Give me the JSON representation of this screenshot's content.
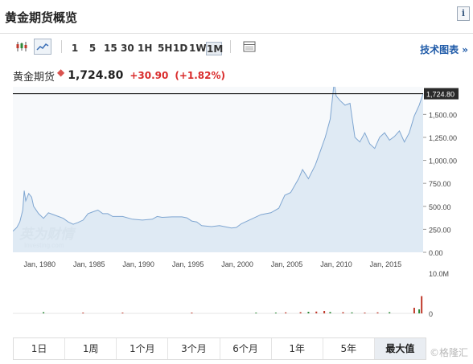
{
  "page": {
    "title": "黄金期货概览"
  },
  "toolbar": {
    "ranges": [
      "1",
      "5",
      "15",
      "30",
      "1H",
      "5H",
      "1D",
      "1W",
      "1M"
    ],
    "active_range": "1M",
    "tech_link": "技术图表 »"
  },
  "quote": {
    "name": "黄金期货",
    "marker": "◆",
    "price": "1,724.80",
    "change": "+30.90",
    "change_pct": "(+1.82%)"
  },
  "chart_data": {
    "type": "area",
    "title": "",
    "xlabel": "",
    "ylabel": "",
    "x_tick_labels": [
      "Jan, 1980",
      "Jan, 1985",
      "Jan, 1990",
      "Jan, 1995",
      "Jan, 2000",
      "Jan, 2005",
      "Jan, 2010",
      "Jan, 2015"
    ],
    "x_tick_years": [
      1980,
      1985,
      1990,
      1995,
      2000,
      2005,
      2010,
      2015
    ],
    "y_tick_labels": [
      "1,500.00",
      "1,250.00",
      "1,000.00",
      "750.00",
      "500.00",
      "250.00",
      "0.00"
    ],
    "y_ticks": [
      1500,
      1250,
      1000,
      750,
      500,
      250,
      0
    ],
    "xlim": [
      1978.9,
      2020.4
    ],
    "ylim": [
      0,
      1800
    ],
    "current_value": 1724.8,
    "current_label": "1,724.80",
    "series": [
      {
        "x": [
          1978.9,
          1979.3,
          1979.6,
          1979.9,
          1980.05,
          1980.2,
          1980.5,
          1980.8,
          1981.0,
          1981.5,
          1982.0,
          1982.5,
          1983.0,
          1983.5,
          1984.0,
          1984.5,
          1985.0,
          1985.5,
          1986.0,
          1986.5,
          1987.0,
          1987.5,
          1988.0,
          1988.5,
          1989.0,
          1990.0,
          1991.0,
          1992.0,
          1993.0,
          1993.5,
          1994.0,
          1995.0,
          1996.0,
          1996.5,
          1997.0,
          1997.5,
          1998.0,
          1999.0,
          1999.8,
          2000.5,
          2001.0,
          2001.5,
          2002.0,
          2003.0,
          2004.0,
          2005.0,
          2005.8,
          2006.4,
          2007.0,
          2007.8,
          2008.2,
          2008.8,
          2009.5,
          2010.0,
          2010.5,
          2011.0,
          2011.4,
          2011.6,
          2012.0,
          2012.5,
          2013.0,
          2013.5,
          2014.0,
          2014.5,
          2015.0,
          2015.5,
          2016.0,
          2016.5,
          2017.0,
          2017.5,
          2018.0,
          2018.5,
          2019.0,
          2019.5,
          2020.0,
          2020.4
        ],
        "values": [
          230,
          270,
          330,
          460,
          670,
          560,
          640,
          600,
          500,
          420,
          370,
          430,
          410,
          390,
          370,
          330,
          305,
          325,
          350,
          420,
          440,
          460,
          420,
          420,
          390,
          390,
          360,
          350,
          360,
          390,
          380,
          385,
          385,
          375,
          340,
          330,
          290,
          280,
          290,
          275,
          265,
          270,
          310,
          360,
          410,
          430,
          480,
          620,
          650,
          800,
          900,
          800,
          950,
          1100,
          1250,
          1450,
          1850,
          1700,
          1650,
          1600,
          1620,
          1250,
          1200,
          1300,
          1180,
          1130,
          1250,
          1300,
          1220,
          1260,
          1320,
          1200,
          1300,
          1480,
          1600,
          1724.8
        ]
      }
    ],
    "volume": {
      "axis_labels": [
        "10.0M",
        "0"
      ],
      "max": 10,
      "unit": "M",
      "bars": [
        {
          "x": 1982.0,
          "v": 0.3,
          "color": "#2e8b3a"
        },
        {
          "x": 1986.0,
          "v": 0.2,
          "color": "#c0392b"
        },
        {
          "x": 1990.0,
          "v": 0.2,
          "color": "#c0392b"
        },
        {
          "x": 1997.0,
          "v": 0.2,
          "color": "#c0392b"
        },
        {
          "x": 2003.5,
          "v": 0.2,
          "color": "#2e8b3a"
        },
        {
          "x": 2005.5,
          "v": 0.2,
          "color": "#2e8b3a"
        },
        {
          "x": 2006.5,
          "v": 0.25,
          "color": "#c0392b"
        },
        {
          "x": 2008.0,
          "v": 0.3,
          "color": "#c0392b"
        },
        {
          "x": 2008.8,
          "v": 0.4,
          "color": "#2e8b3a"
        },
        {
          "x": 2009.6,
          "v": 0.45,
          "color": "#c0392b"
        },
        {
          "x": 2010.4,
          "v": 0.6,
          "color": "#c0392b"
        },
        {
          "x": 2011.0,
          "v": 0.35,
          "color": "#2e8b3a"
        },
        {
          "x": 2012.3,
          "v": 0.3,
          "color": "#c0392b"
        },
        {
          "x": 2013.2,
          "v": 0.25,
          "color": "#2e8b3a"
        },
        {
          "x": 2014.5,
          "v": 0.2,
          "color": "#c0392b"
        },
        {
          "x": 2015.8,
          "v": 0.25,
          "color": "#c0392b"
        },
        {
          "x": 2017.0,
          "v": 0.3,
          "color": "#2e8b3a"
        },
        {
          "x": 2019.5,
          "v": 1.4,
          "color": "#c0392b"
        },
        {
          "x": 2020.0,
          "v": 1.0,
          "color": "#2e8b3a"
        },
        {
          "x": 2020.25,
          "v": 4.3,
          "color": "#c0392b"
        }
      ]
    },
    "watermark": {
      "brand": "英为财情",
      "sub": "Investing.com"
    },
    "colors": {
      "line": "#7fa6d1",
      "fill": "#dce8f3",
      "current_line": "#000000",
      "price_label_bg": "#2a2a2a"
    }
  },
  "range_bar": {
    "items": [
      "1日",
      "1周",
      "1个月",
      "3个月",
      "6个月",
      "1年",
      "5年",
      "最大值"
    ],
    "active": "最大值"
  },
  "footer": {
    "credit": "©格隆汇"
  }
}
